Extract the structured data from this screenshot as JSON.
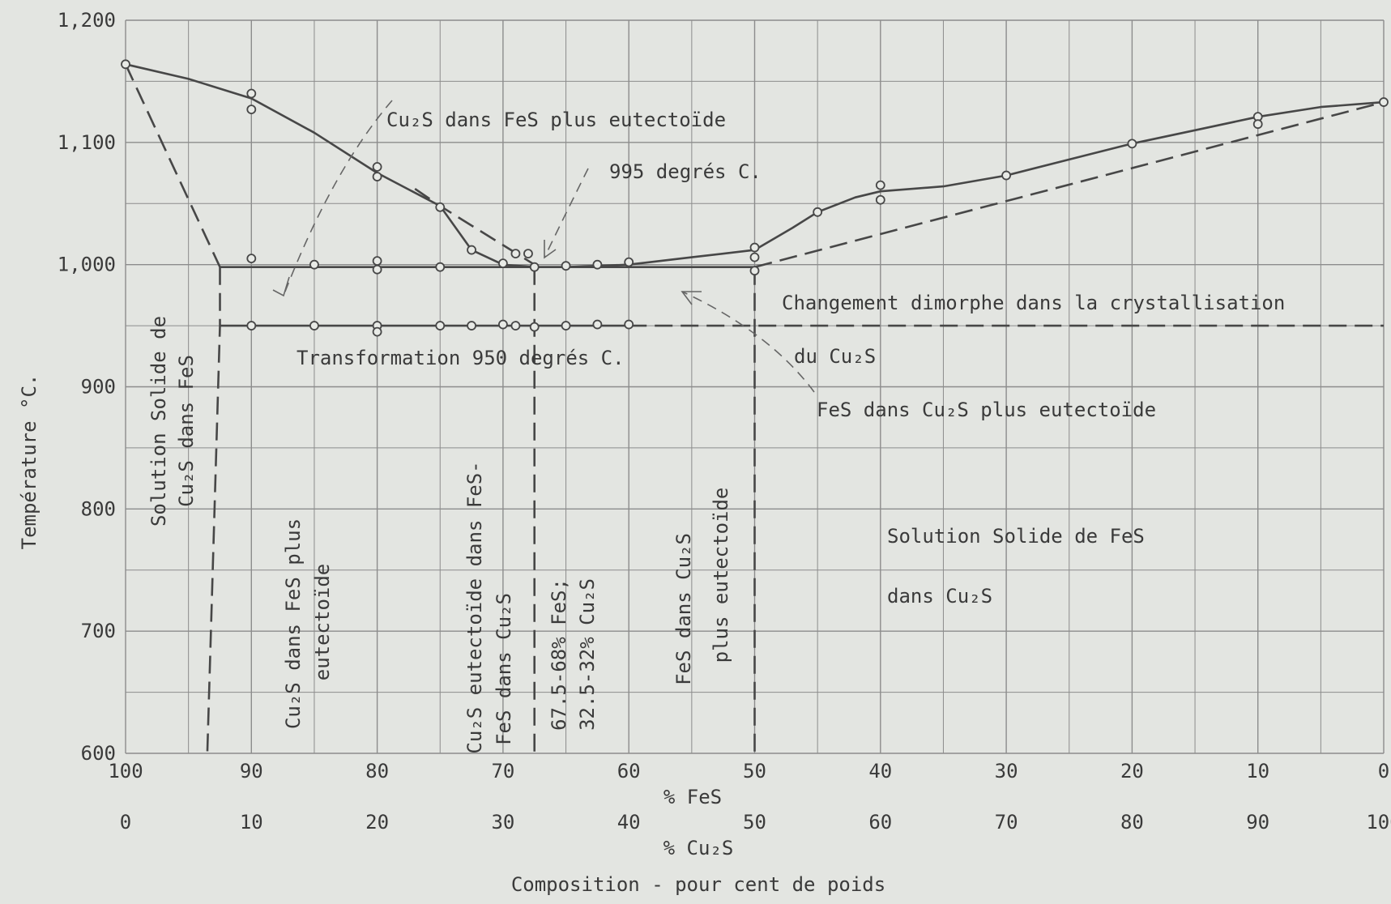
{
  "chart_data": {
    "type": "line",
    "title": "",
    "ylabel": "Température °C.",
    "xlabel_fes": "% FeS",
    "xlabel_cu2s": "% Cu₂S",
    "xlabel_composition": "Composition - pour cent de poids",
    "x_unit": "% FeS",
    "ylim": [
      600,
      1200
    ],
    "xlim": [
      100,
      0
    ],
    "y_ticks": [
      {
        "value": 600,
        "label": "600"
      },
      {
        "value": 700,
        "label": "700"
      },
      {
        "value": 800,
        "label": "800"
      },
      {
        "value": 900,
        "label": "900"
      },
      {
        "value": 1000,
        "label": "1,000"
      },
      {
        "value": 1100,
        "label": "1,100"
      },
      {
        "value": 1200,
        "label": "1,200"
      }
    ],
    "x_ticks_fes": [
      "100",
      "90",
      "80",
      "70",
      "60",
      "50",
      "40",
      "30",
      "20",
      "10",
      "0"
    ],
    "x_ticks_cu2s": [
      "0",
      "10",
      "20",
      "30",
      "40",
      "50",
      "60",
      "70",
      "80",
      "90",
      "100"
    ],
    "series": [
      {
        "style": "solid",
        "points": [
          [
            100,
            1164
          ],
          [
            95,
            1152
          ],
          [
            90,
            1136
          ],
          [
            85,
            1108
          ],
          [
            80,
            1075
          ],
          [
            75,
            1048
          ],
          [
            72.5,
            1012
          ],
          [
            70,
            1000
          ],
          [
            67.5,
            998
          ],
          [
            65,
            998
          ],
          [
            60,
            1000
          ],
          [
            55,
            1006
          ],
          [
            50,
            1012
          ],
          [
            47,
            1030
          ],
          [
            45,
            1043
          ],
          [
            42,
            1055
          ],
          [
            40,
            1060
          ],
          [
            35,
            1064
          ],
          [
            30,
            1073
          ],
          [
            25,
            1086
          ],
          [
            20,
            1099
          ],
          [
            15,
            1110
          ],
          [
            10,
            1121
          ],
          [
            5,
            1129
          ],
          [
            0,
            1133
          ]
        ]
      },
      {
        "style": "dashed",
        "points": [
          [
            100,
            1164
          ],
          [
            92.5,
            998
          ]
        ]
      },
      {
        "style": "dashed",
        "points": [
          [
            77,
            1062
          ],
          [
            75,
            1048
          ],
          [
            67.5,
            1000
          ]
        ]
      },
      {
        "style": "dashed",
        "points": [
          [
            50,
            998
          ],
          [
            0,
            1133
          ]
        ]
      },
      {
        "style": "solid",
        "points": [
          [
            92.5,
            998
          ],
          [
            50,
            998
          ]
        ]
      },
      {
        "style": "solid",
        "points": [
          [
            92.5,
            950
          ],
          [
            60,
            950
          ]
        ]
      },
      {
        "style": "dashed",
        "points": [
          [
            60,
            950
          ],
          [
            0,
            950
          ]
        ]
      },
      {
        "style": "dashed",
        "points": [
          [
            92.5,
            998
          ],
          [
            92.5,
            950
          ],
          [
            93.5,
            600
          ]
        ]
      },
      {
        "style": "dashed",
        "points": [
          [
            67.5,
            998
          ],
          [
            67.5,
            600
          ]
        ]
      },
      {
        "style": "dashed",
        "points": [
          [
            50,
            998
          ],
          [
            50,
            600
          ]
        ]
      }
    ],
    "data_points": [
      [
        100,
        1164
      ],
      [
        90,
        1140
      ],
      [
        90,
        1127
      ],
      [
        90,
        1005
      ],
      [
        90,
        950
      ],
      [
        80,
        1080
      ],
      [
        80,
        1072
      ],
      [
        80,
        1003
      ],
      [
        80,
        996
      ],
      [
        80,
        950
      ],
      [
        80,
        945
      ],
      [
        85,
        1000
      ],
      [
        85,
        950
      ],
      [
        75,
        1047
      ],
      [
        75,
        998
      ],
      [
        75,
        950
      ],
      [
        72.5,
        1012
      ],
      [
        72.5,
        950
      ],
      [
        70,
        1001
      ],
      [
        70,
        951
      ],
      [
        69,
        1009
      ],
      [
        68,
        1009
      ],
      [
        69,
        950
      ],
      [
        67.5,
        998
      ],
      [
        67.5,
        949
      ],
      [
        65,
        999
      ],
      [
        65,
        950
      ],
      [
        62.5,
        1000
      ],
      [
        62.5,
        951
      ],
      [
        60,
        1002
      ],
      [
        60,
        951
      ],
      [
        50,
        1014
      ],
      [
        50,
        1006
      ],
      [
        50,
        995
      ],
      [
        45,
        1043
      ],
      [
        40,
        1065
      ],
      [
        40,
        1053
      ],
      [
        30,
        1073
      ],
      [
        20,
        1099
      ],
      [
        10,
        1121
      ],
      [
        10,
        1115
      ],
      [
        0,
        1133
      ]
    ],
    "annotations": [
      {
        "text": "Cu₂S dans FeS plus eutectoïde"
      },
      {
        "text": "995 degrés C."
      },
      {
        "text": "Changement dimorphe dans la crystallisation"
      },
      {
        "text": "du Cu₂S"
      },
      {
        "text": "Transformation 950 degrés C."
      },
      {
        "text": "FeS dans Cu₂S plus eutectoïde"
      },
      {
        "text": "Solution Solide de"
      },
      {
        "text": "Cu₂S dans FeS"
      },
      {
        "text": "Cu₂S dans FeS plus"
      },
      {
        "text": "eutectoïde"
      },
      {
        "text": "Cu₂S eutectoïde dans FeS-"
      },
      {
        "text": "FeS dans Cu₂S"
      },
      {
        "text": "67.5-68% FeS;"
      },
      {
        "text": "32.5-32% Cu₂S"
      },
      {
        "text": "FeS dans Cu₂S"
      },
      {
        "text": "plus eutectoïde"
      },
      {
        "text": "Solution Solide de FeS"
      },
      {
        "text": "dans Cu₂S"
      }
    ]
  }
}
